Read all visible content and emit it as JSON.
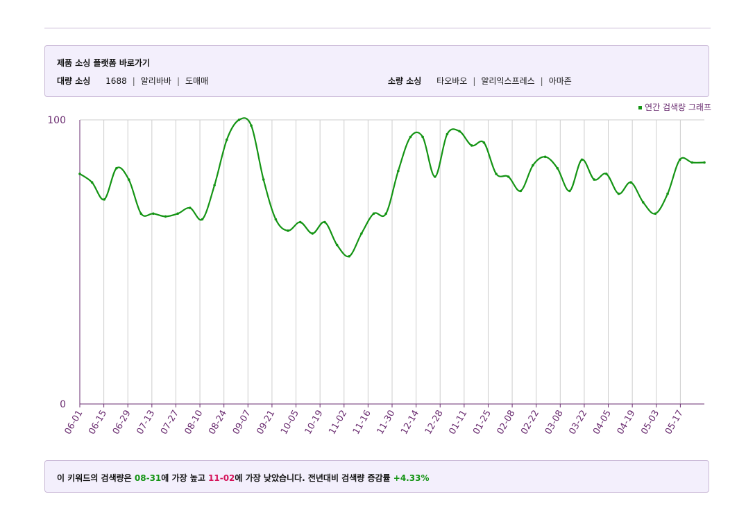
{
  "sourcing": {
    "title": "제품 소싱 플랫폼 바로가기",
    "bulk_label": "대량 소싱",
    "bulk_links": [
      "1688",
      "알리바바",
      "도매매"
    ],
    "small_label": "소량 소싱",
    "small_links": [
      "타오바오",
      "알리익스프레스",
      "아마존"
    ]
  },
  "legend": {
    "label": "연간 검색량 그래프"
  },
  "summary": {
    "prefix": "이 키워드의 검색량은 ",
    "high_date": "08-31",
    "mid1": "에 가장 높고 ",
    "low_date": "11-02",
    "mid2": "에 가장 낮았습니다. 전년대비 검색량 증감률 ",
    "rate": "+4.33%"
  },
  "colors": {
    "line": "#149414",
    "axis": "#6a2c70",
    "grid": "#cccccc",
    "box_bg": "#f3effc",
    "box_border": "#c9b8d6",
    "low": "#d4145a"
  },
  "chart_data": {
    "type": "line",
    "ylim": [
      0,
      100
    ],
    "y_ticks": [
      "0",
      "100"
    ],
    "x_tick_labels": [
      "06-01",
      "06-15",
      "06-29",
      "07-13",
      "07-27",
      "08-10",
      "08-24",
      "09-07",
      "09-21",
      "10-05",
      "10-19",
      "11-02",
      "11-16",
      "11-30",
      "12-14",
      "12-28",
      "01-11",
      "01-25",
      "02-08",
      "02-22",
      "03-08",
      "03-22",
      "04-05",
      "04-19",
      "05-03",
      "05-17"
    ],
    "series": [
      {
        "values": [
          81,
          78,
          72,
          83,
          79,
          67,
          67,
          66,
          67,
          69,
          65,
          77,
          93,
          100,
          98,
          79,
          65,
          61,
          64,
          60,
          64,
          56,
          52,
          60,
          67,
          67,
          82,
          94,
          94,
          80,
          95,
          96,
          91,
          92,
          81,
          80,
          75,
          84,
          87,
          83,
          75,
          86,
          79,
          81,
          74,
          78,
          71,
          67,
          74,
          86,
          85,
          85
        ]
      }
    ]
  }
}
